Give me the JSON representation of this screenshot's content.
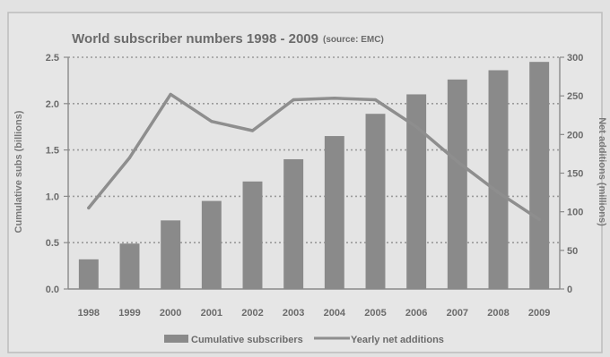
{
  "chart_data": {
    "type": "bar",
    "title": "World subscriber numbers 1998 - 2009",
    "source_note": "(source: EMC)",
    "categories": [
      "1998",
      "1999",
      "2000",
      "2001",
      "2002",
      "2003",
      "2004",
      "2005",
      "2006",
      "2007",
      "2008",
      "2009"
    ],
    "series": [
      {
        "name": "Cumulative subscribers",
        "type": "bar",
        "axis": "left",
        "values": [
          0.32,
          0.49,
          0.74,
          0.95,
          1.16,
          1.4,
          1.65,
          1.89,
          2.1,
          2.26,
          2.36,
          2.45
        ]
      },
      {
        "name": "Yearly net additions",
        "type": "line",
        "axis": "right",
        "values": [
          105,
          170,
          252,
          217,
          205,
          245,
          247,
          245,
          210,
          165,
          125,
          90
        ]
      }
    ],
    "ylabel": "Cumulative subs (billions)",
    "ylim": [
      0,
      2.5
    ],
    "yticks": [
      "0.0",
      "0.5",
      "1.0",
      "1.5",
      "2.0",
      "2.5"
    ],
    "y2label": "Net additions (millions)",
    "y2lim": [
      0,
      300
    ],
    "y2ticks": [
      "0",
      "50",
      "100",
      "150",
      "200",
      "250",
      "300"
    ],
    "grid": "horizontal-dotted",
    "legend_position": "bottom",
    "colors": {
      "bar": "#8a8a8a",
      "line": "#8e8e8e",
      "grid": "#9a9a9a",
      "text": "#6b6b6b"
    }
  }
}
